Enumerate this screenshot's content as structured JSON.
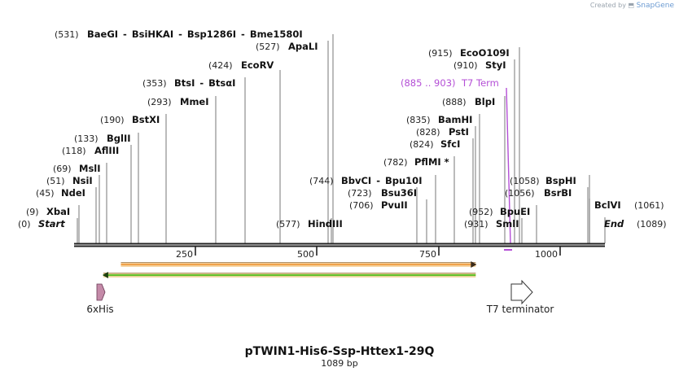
{
  "credit": {
    "prefix": "Created by",
    "brand": "SnapGene"
  },
  "map": {
    "name": "pTWIN1-His6-Ssp-Httex1-29Q",
    "length_label": "1089 bp",
    "length": 1089
  },
  "ticks": [
    "250",
    "500",
    "750",
    "1000"
  ],
  "sites": [
    {
      "pos": "(0)",
      "name": "Start",
      "style": "italic"
    },
    {
      "pos": "(9)",
      "name": "XbaI"
    },
    {
      "pos": "(45)",
      "name": "NdeI"
    },
    {
      "pos": "(51)",
      "name": "NsiI"
    },
    {
      "pos": "(69)",
      "name": "MslI"
    },
    {
      "pos": "(118)",
      "name": "AflIII"
    },
    {
      "pos": "(133)",
      "name": "BglII"
    },
    {
      "pos": "(190)",
      "name": "BstXI"
    },
    {
      "pos": "(293)",
      "name": "MmeI"
    },
    {
      "pos": "(353)",
      "name": "BtsI",
      "sep": "-",
      "name2": "BtsαI"
    },
    {
      "pos": "(424)",
      "name": "EcoRV"
    },
    {
      "pos": "(527)",
      "name": "ApaLI"
    },
    {
      "pos": "(531)",
      "name": "BaeGI",
      "sep": "-",
      "name2": "BsiHKAI",
      "sep2": "-",
      "name3": "Bsp1286I",
      "sep3": "-",
      "name4": "Bme1580I"
    },
    {
      "pos": "(577)",
      "name": "HindIII"
    },
    {
      "pos": "(706)",
      "name": "PvuII"
    },
    {
      "pos": "(723)",
      "name": "Bsu36I"
    },
    {
      "pos": "(744)",
      "name": "BbvCI",
      "sep": "-",
      "name2": "Bpu10I"
    },
    {
      "pos": "(782)",
      "name": "PflMI *"
    },
    {
      "pos": "(824)",
      "name": "SfcI"
    },
    {
      "pos": "(828)",
      "name": "PstI"
    },
    {
      "pos": "(835)",
      "name": "BamHI"
    },
    {
      "pos": "(888)",
      "name": "BlpI"
    },
    {
      "pos": "(885 .. 903)",
      "name": "T7 Term",
      "style": "feature"
    },
    {
      "pos": "(910)",
      "name": "StyI"
    },
    {
      "pos": "(915)",
      "name": "EcoO109I"
    },
    {
      "pos": "(931)",
      "name": "SmlI"
    },
    {
      "pos": "(952)",
      "name": "BpuEI"
    },
    {
      "pos": "(1056)",
      "name": "BsrBI"
    },
    {
      "pos": "(1058)",
      "name": "BspHI"
    },
    {
      "pos": "(1061)",
      "name": "BclVI",
      "style": "reverse"
    },
    {
      "pos": "(1089)",
      "name": "End",
      "style": "reverse-italic"
    }
  ],
  "features": [
    {
      "name": "6xHis",
      "start": 36,
      "end": 54,
      "color": "#c48aa8",
      "direction": "forward"
    },
    {
      "name": "T7 terminator",
      "start": 885,
      "end": 932,
      "color": "#ffffff",
      "direction": "forward"
    }
  ],
  "bars": [
    {
      "start": 96,
      "end": 824,
      "color": "#f0a24a",
      "direction": "forward"
    },
    {
      "start": 60,
      "end": 824,
      "color": "#5fbf2a",
      "direction": "reverse"
    }
  ],
  "colors": {
    "feature_label": "#b44fd6",
    "backbone": "#222222"
  }
}
